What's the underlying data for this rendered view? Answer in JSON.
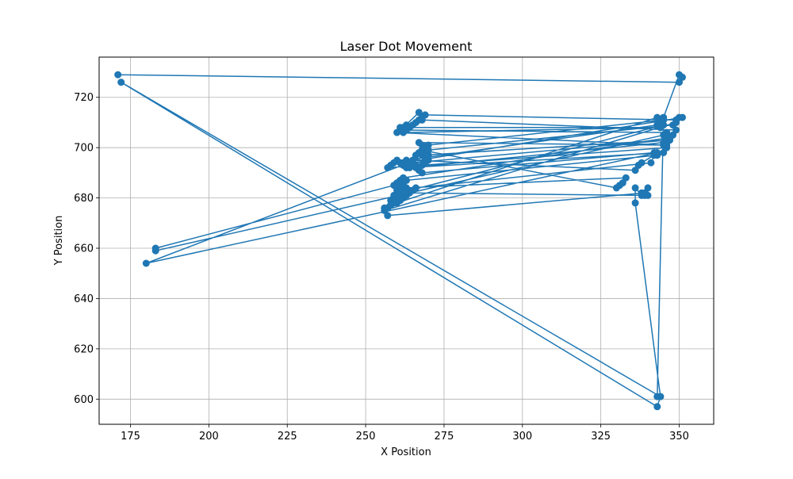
{
  "chart_data": {
    "type": "line",
    "title": "Laser Dot Movement",
    "xlabel": "X Position",
    "ylabel": "Y Position",
    "xlim": [
      165,
      361
    ],
    "ylim": [
      590,
      736
    ],
    "xticks": [
      175,
      200,
      225,
      250,
      275,
      300,
      325,
      350
    ],
    "yticks": [
      600,
      620,
      640,
      660,
      680,
      700,
      720
    ],
    "grid": true,
    "marker": "circle",
    "color": "#1f77b4",
    "series": [
      {
        "x": [
          171,
          350,
          351,
          350,
          345,
          343,
          344,
          172,
          343,
          344,
          336,
          336,
          338,
          340,
          340,
          339,
          257,
          256,
          258,
          259,
          260,
          261,
          262,
          263,
          343,
          345,
          263,
          262,
          261,
          260,
          259,
          258,
          257,
          346,
          347,
          348,
          349,
          268,
          267,
          262,
          261,
          260,
          345,
          346,
          265,
          266,
          267,
          268,
          269,
          270,
          269,
          268,
          346,
          347,
          262,
          261,
          260,
          259,
          183,
          183,
          345,
          346,
          262,
          261,
          263,
          264,
          344,
          343,
          260,
          261,
          262,
          263,
          264,
          265,
          266,
          341,
          342,
          338,
          337,
          336,
          265,
          266,
          267,
          268,
          269,
          270,
          345,
          344,
          343,
          263,
          264,
          265,
          266,
          267,
          268,
          342,
          343,
          180,
          270,
          269,
          268,
          330,
          331,
          332,
          333,
          263,
          262,
          261,
          345,
          344,
          262,
          263,
          264,
          265,
          266,
          267,
          268,
          269,
          349,
          350,
          351,
          262,
          263,
          264,
          345,
          346,
          267,
          268,
          269,
          270,
          348,
          349,
          256,
          257,
          258,
          259,
          260,
          261,
          262,
          263,
          339,
          338
        ],
        "y": [
          729,
          726,
          728,
          729,
          712,
          601,
          601,
          726,
          597,
          601,
          678,
          684,
          681,
          681,
          684,
          682,
          673,
          676,
          679,
          681,
          683,
          685,
          686,
          687,
          697,
          698,
          692,
          693,
          694,
          695,
          694,
          693,
          692,
          700,
          703,
          705,
          707,
          711,
          714,
          708,
          707,
          706,
          701,
          703,
          694,
          693,
          692,
          693,
          694,
          695,
          696,
          697,
          703,
          704,
          688,
          687,
          686,
          685,
          660,
          659,
          705,
          706,
          707,
          708,
          709,
          708,
          708,
          712,
          678,
          679,
          680,
          681,
          682,
          683,
          684,
          694,
          697,
          694,
          693,
          691,
          695,
          697,
          698,
          699,
          700,
          701,
          711,
          710,
          709,
          695,
          694,
          693,
          692,
          691,
          690,
          698,
          698,
          654,
          697,
          698,
          699,
          684,
          685,
          686,
          688,
          684,
          683,
          682,
          709,
          708,
          706,
          707,
          708,
          709,
          710,
          711,
          712,
          713,
          711,
          712,
          712,
          694,
          693,
          692,
          702,
          701,
          702,
          701,
          700,
          699,
          709,
          710,
          675,
          676,
          677,
          678,
          679,
          680,
          681,
          682,
          681,
          682
        ]
      }
    ]
  }
}
